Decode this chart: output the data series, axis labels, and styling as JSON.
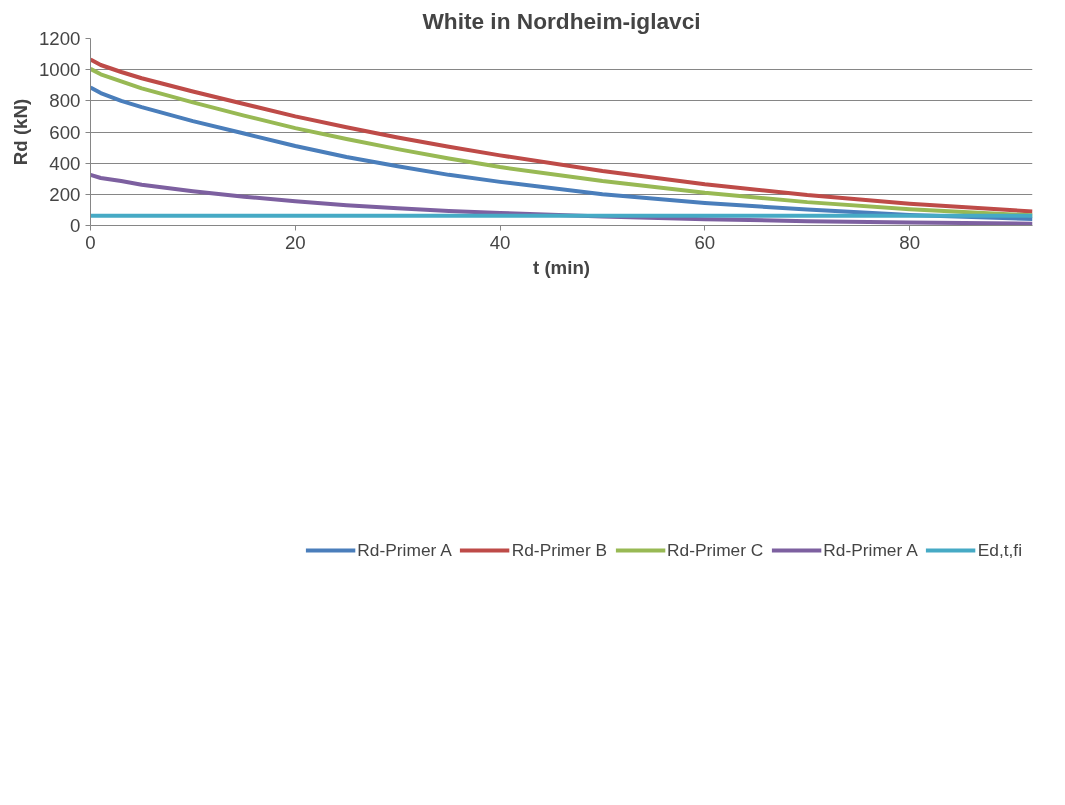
{
  "chart_data": {
    "type": "line",
    "title": "White in Nordheim-iglavci",
    "xlabel": "t (min)",
    "ylabel": "Rd (kN)",
    "x": [
      0,
      1,
      3,
      5,
      10,
      15,
      20,
      25,
      30,
      35,
      40,
      50,
      60,
      70,
      80,
      92
    ],
    "xlim": [
      0,
      92
    ],
    "xticks": [
      0,
      20,
      40,
      60,
      80
    ],
    "ylim": [
      0,
      1200
    ],
    "yticks": [
      0,
      200,
      400,
      600,
      800,
      1000,
      1200
    ],
    "grid": "y",
    "legend": "bottom",
    "marker": "none",
    "line_style": "solid",
    "series": [
      {
        "name": "Rd-Primer A",
        "color": "#4a7ebb",
        "values": [
          885,
          850,
          800,
          760,
          670,
          590,
          510,
          440,
          380,
          325,
          280,
          200,
          145,
          102,
          68,
          42
        ]
      },
      {
        "name": "Rd-Primer B",
        "color": "#be4b48",
        "values": [
          1065,
          1030,
          985,
          945,
          860,
          780,
          700,
          630,
          565,
          505,
          450,
          350,
          265,
          195,
          140,
          90
        ]
      },
      {
        "name": "Rd-Primer C",
        "color": "#98b954",
        "values": [
          1005,
          970,
          925,
          880,
          790,
          705,
          625,
          555,
          490,
          430,
          375,
          285,
          210,
          150,
          105,
          65
        ]
      },
      {
        "name": "Rd-Primer A",
        "color": "#7d60a0",
        "values": [
          325,
          305,
          285,
          262,
          220,
          185,
          155,
          130,
          110,
          93,
          80,
          58,
          40,
          28,
          19,
          12
        ]
      },
      {
        "name": "Ed,t,fi",
        "color": "#46aac5",
        "values": [
          62,
          62,
          62,
          62,
          62,
          62,
          62,
          62,
          62,
          62,
          62,
          62,
          62,
          62,
          62,
          62
        ]
      }
    ]
  }
}
